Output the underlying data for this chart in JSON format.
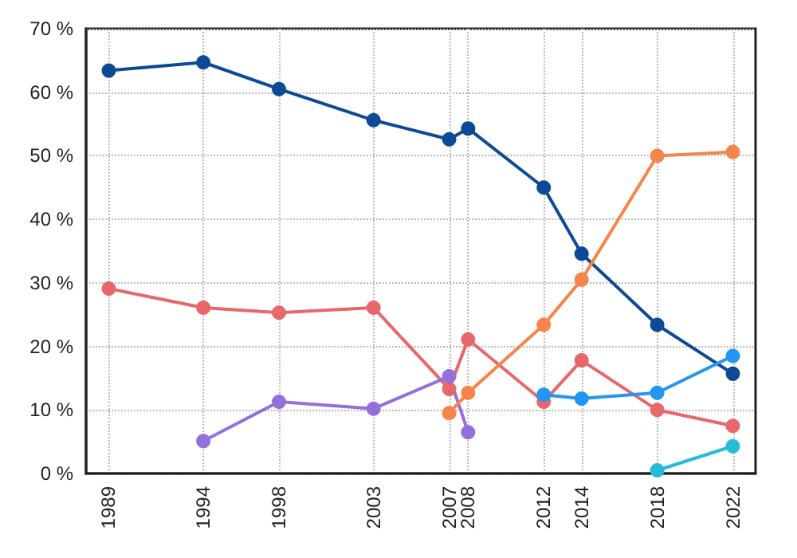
{
  "chart_data": {
    "type": "line",
    "x": [
      1989,
      1994,
      1998,
      2003,
      2007,
      2008,
      2012,
      2014,
      2018,
      2022
    ],
    "series": [
      {
        "color": "#0d4a96",
        "values": [
          63.4,
          64.7,
          60.5,
          55.6,
          52.6,
          54.3,
          45,
          34.6,
          23.4,
          15.7
        ]
      },
      {
        "color": "#e8676a",
        "values": [
          29.1,
          26.1,
          25.3,
          26.1,
          13.3,
          21.1,
          11.3,
          17.8,
          10,
          7.5
        ]
      },
      {
        "color": "#9370db",
        "values": [
          null,
          5.1,
          11.3,
          10.2,
          15.3,
          6.5,
          null,
          null,
          null,
          null
        ]
      },
      {
        "color": "#f5854a",
        "values": [
          null,
          null,
          null,
          null,
          9.5,
          12.7,
          23.4,
          30.5,
          50,
          50.6
        ]
      },
      {
        "color": "#2196f3",
        "values": [
          null,
          null,
          null,
          null,
          null,
          null,
          12.4,
          11.8,
          12.7,
          18.5
        ]
      },
      {
        "color": "#26bcd7",
        "values": [
          null,
          null,
          null,
          null,
          null,
          null,
          null,
          null,
          0.5,
          4.3
        ]
      }
    ],
    "xlim": [
      1987.8,
      2023.2
    ],
    "xticks": [
      1989,
      1994,
      1998,
      2003,
      2007,
      2008,
      2012,
      2014,
      2018,
      2022
    ],
    "ylim": [
      0,
      70
    ],
    "yticks": [
      {
        "value": 0,
        "label": "0 %"
      },
      {
        "value": 10,
        "label": "10 %"
      },
      {
        "value": 20,
        "label": "20 %"
      },
      {
        "value": 30,
        "label": "30 %"
      },
      {
        "value": 40,
        "label": "40 %"
      },
      {
        "value": 50,
        "label": "50 %"
      },
      {
        "value": 60,
        "label": "60 %"
      },
      {
        "value": 70,
        "label": "70 %"
      }
    ],
    "grid": true,
    "marker": "circle",
    "line_style": "solid",
    "legend": false
  }
}
